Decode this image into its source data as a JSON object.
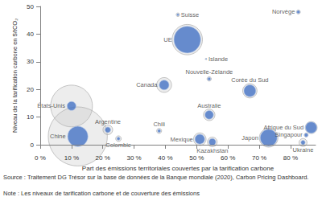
{
  "chart_data": {
    "type": "scatter",
    "x_label": "Part des émissions territoriales couvertes par la tarification carbone",
    "y_label": "Niveau de la tarification carbone en $/tCO₂",
    "labels": [
      "États-Unis",
      "Chine",
      "Argentine",
      "Colombie",
      "Chili",
      "Mexique",
      "Kazakhstan",
      "Japon",
      "Singapour",
      "Ukraine",
      "Afrique du Sud",
      "Australie",
      "Corée du Sud",
      "Nouvelle-Zélande",
      "Canada",
      "Islande",
      "UE",
      "Norvège",
      "Suisse"
    ],
    "x": [
      10,
      12,
      21.6,
      25,
      38,
      51,
      55,
      73,
      85,
      84,
      86.6,
      54,
      67,
      54,
      39.6,
      53,
      47,
      82.5,
      44
    ],
    "values": [
      14,
      3,
      5.4,
      2.2,
      5,
      2,
      1,
      2.5,
      3.5,
      0.8,
      6.2,
      10.8,
      19.5,
      23.8,
      21.6,
      31,
      38,
      48,
      47
    ],
    "emissions": [
      5500,
      11000,
      300,
      100,
      80,
      500,
      300,
      1100,
      50,
      200,
      450,
      420,
      650,
      60,
      700,
      5,
      2900,
      50,
      40
    ],
    "covered_emissions": [
      250,
      1300,
      100,
      30,
      30,
      300,
      150,
      900,
      40,
      60,
      400,
      230,
      450,
      30,
      300,
      3,
      2250,
      30,
      15
    ],
    "color": "#4472c4",
    "xlim": [
      0,
      88
    ],
    "xticks": [
      {
        "value": 0,
        "label": "0 %"
      },
      {
        "value": 10,
        "label": "10 %"
      },
      {
        "value": 20,
        "label": "20 %"
      },
      {
        "value": 30,
        "label": "30 %"
      },
      {
        "value": 40,
        "label": "40 %"
      },
      {
        "value": 50,
        "label": "50 %"
      },
      {
        "value": 60,
        "label": "60 %"
      },
      {
        "value": 70,
        "label": "70 %"
      },
      {
        "value": 80,
        "label": "80 %"
      }
    ],
    "ylim": [
      0,
      50
    ],
    "yticks": [
      0,
      10,
      20,
      30,
      40,
      50
    ],
    "grid": false,
    "source": "Source : Traitement DG Trésor sur la base de données de la Banque mondiale (2020), Carbon Pricing Dashboard.",
    "note": "Note : Les niveaux de tarification carbone et de couverture des émissions"
  }
}
